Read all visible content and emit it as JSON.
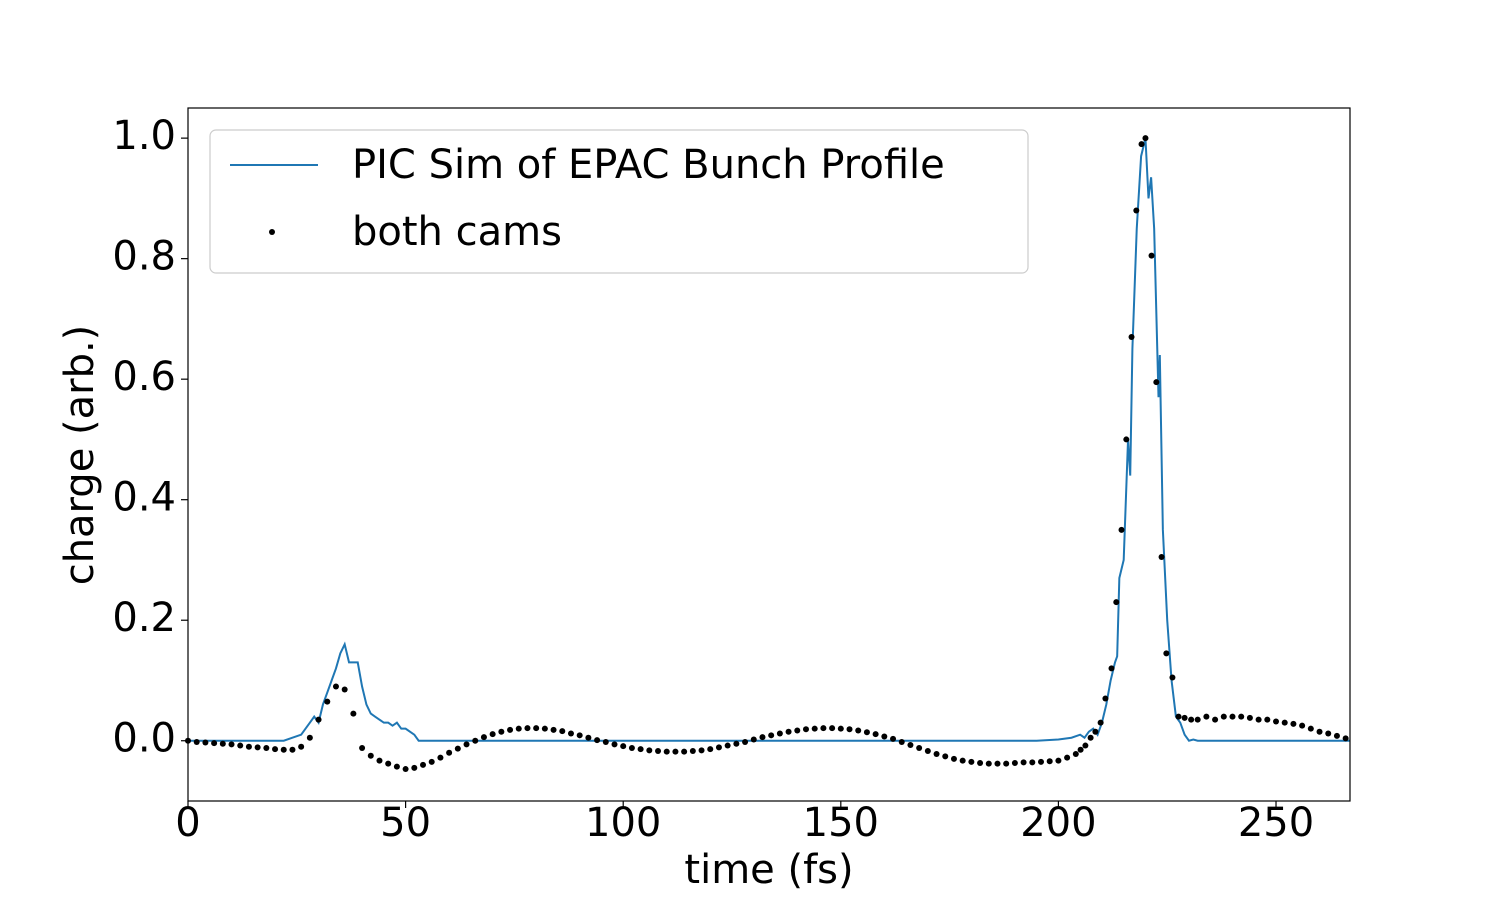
{
  "chart_data": {
    "type": "line",
    "xlabel": "time (fs)",
    "ylabel": "charge (arb.)",
    "xlim": [
      0,
      267
    ],
    "ylim": [
      -0.1,
      1.05
    ],
    "xticks": [
      0,
      50,
      100,
      150,
      200,
      250
    ],
    "yticks": [
      {
        "value": 0,
        "label": "0.0"
      },
      0.2,
      0.4,
      0.6,
      0.8,
      {
        "value": 1,
        "label": "1.0"
      }
    ],
    "legend": "upper left",
    "series": [
      {
        "name": "PIC Sim of EPAC Bunch Profile",
        "color": "#1f77b4",
        "type": "line",
        "x": [
          0,
          22,
          24,
          26,
          28,
          29,
          30,
          31,
          32,
          33,
          34,
          35,
          36,
          37,
          38,
          39,
          40,
          41,
          42,
          43,
          44,
          45,
          46,
          47,
          48,
          49,
          50,
          52,
          53,
          195,
          200,
          203,
          205,
          206,
          207,
          208,
          209,
          210,
          211,
          212,
          213,
          213.5,
          214,
          215,
          216,
          216.5,
          217,
          218,
          219,
          220,
          220.7,
          221.3,
          222,
          223,
          223.3,
          224,
          225,
          226,
          227,
          228,
          229,
          230,
          231,
          232,
          267
        ],
        "values": [
          0,
          0,
          0.005,
          0.01,
          0.03,
          0.04,
          0.03,
          0.06,
          0.08,
          0.1,
          0.12,
          0.145,
          0.16,
          0.13,
          0.13,
          0.13,
          0.09,
          0.06,
          0.045,
          0.04,
          0.035,
          0.03,
          0.03,
          0.025,
          0.03,
          0.02,
          0.02,
          0.01,
          0,
          0,
          0.002,
          0.005,
          0.01,
          0.005,
          0.015,
          0.02,
          0.01,
          0.03,
          0.06,
          0.1,
          0.13,
          0.14,
          0.27,
          0.3,
          0.5,
          0.44,
          0.65,
          0.85,
          0.97,
          1.0,
          0.9,
          0.935,
          0.85,
          0.57,
          0.64,
          0.35,
          0.2,
          0.1,
          0.04,
          0.03,
          0.01,
          0,
          0.002,
          0,
          0
        ]
      },
      {
        "name": "both cams",
        "color": "#000000",
        "type": "scatter",
        "x": [
          0,
          2,
          4,
          6,
          8,
          10,
          12,
          14,
          16,
          18,
          20,
          22,
          24,
          26,
          28,
          30,
          32,
          34,
          36,
          38,
          40,
          42,
          44,
          46,
          48,
          50,
          52,
          54,
          56,
          58,
          60,
          62,
          64,
          66,
          68,
          70,
          72,
          74,
          76,
          78,
          80,
          82,
          84,
          86,
          88,
          90,
          92,
          94,
          96,
          98,
          100,
          102,
          104,
          106,
          108,
          110,
          112,
          114,
          116,
          118,
          120,
          122,
          124,
          126,
          128,
          130,
          132,
          134,
          136,
          138,
          140,
          142,
          144,
          146,
          148,
          150,
          152,
          154,
          156,
          158,
          160,
          162,
          164,
          166,
          168,
          170,
          172,
          174,
          176,
          178,
          180,
          182,
          184,
          186,
          188,
          190,
          192,
          194,
          196,
          198,
          200,
          202,
          204,
          205.1,
          206.2,
          207.4,
          208.5,
          209.7,
          210.8,
          212.2,
          213.3,
          214.5,
          215.6,
          216.8,
          217.9,
          219.1,
          220,
          221.4,
          222.5,
          223.7,
          224.8,
          226.2,
          227.6,
          229,
          230.5,
          232,
          234,
          236,
          238,
          240,
          242,
          244,
          246,
          248,
          250,
          252,
          254,
          256,
          258,
          260,
          262,
          264,
          266
        ],
        "values": [
          0,
          -0.002,
          -0.003,
          -0.004,
          -0.005,
          -0.006,
          -0.008,
          -0.01,
          -0.011,
          -0.012,
          -0.014,
          -0.015,
          -0.015,
          -0.01,
          0.005,
          0.035,
          0.065,
          0.09,
          0.085,
          0.045,
          -0.012,
          -0.025,
          -0.033,
          -0.038,
          -0.043,
          -0.047,
          -0.045,
          -0.04,
          -0.035,
          -0.028,
          -0.02,
          -0.013,
          -0.006,
          0,
          0.006,
          0.011,
          0.015,
          0.018,
          0.02,
          0.021,
          0.021,
          0.02,
          0.018,
          0.016,
          0.012,
          0.009,
          0.005,
          0.001,
          -0.002,
          -0.006,
          -0.009,
          -0.012,
          -0.014,
          -0.016,
          -0.017,
          -0.018,
          -0.018,
          -0.018,
          -0.017,
          -0.016,
          -0.014,
          -0.011,
          -0.008,
          -0.005,
          -0.002,
          0.002,
          0.006,
          0.009,
          0.012,
          0.015,
          0.017,
          0.019,
          0.02,
          0.021,
          0.021,
          0.02,
          0.019,
          0.017,
          0.014,
          0.011,
          0.007,
          0.003,
          -0.002,
          -0.007,
          -0.012,
          -0.017,
          -0.022,
          -0.026,
          -0.03,
          -0.033,
          -0.035,
          -0.037,
          -0.038,
          -0.038,
          -0.038,
          -0.037,
          -0.036,
          -0.036,
          -0.035,
          -0.034,
          -0.033,
          -0.028,
          -0.022,
          -0.015,
          -0.008,
          0.005,
          0.015,
          0.03,
          0.07,
          0.12,
          0.23,
          0.35,
          0.5,
          0.67,
          0.88,
          0.99,
          1.0,
          0.805,
          0.595,
          0.305,
          0.145,
          0.105,
          0.04,
          0.038,
          0.035,
          0.035,
          0.04,
          0.035,
          0.04,
          0.04,
          0.04,
          0.038,
          0.035,
          0.035,
          0.032,
          0.03,
          0.028,
          0.025,
          0.02,
          0.015,
          0.012,
          0.008,
          0.004
        ]
      }
    ]
  }
}
